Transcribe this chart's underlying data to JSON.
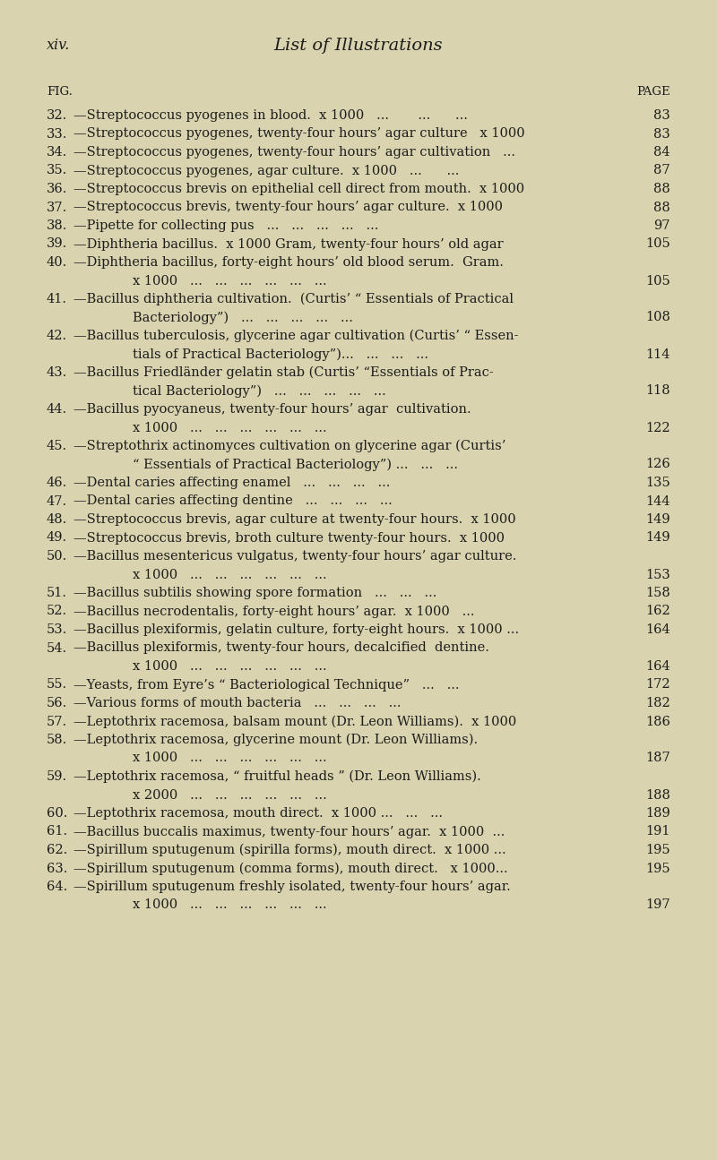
{
  "bg_color": "#d9d4af",
  "header_left": "xiv.",
  "header_center": "List of Illustrations",
  "col_left": "FIG.",
  "col_right": "PAGE",
  "body_font_size": 10.5,
  "figsize": [
    8.0,
    12.95
  ],
  "dpi": 100,
  "entries": [
    {
      "fig": "32.",
      "text": "—Streptococcus pyogenes in blood.  x 1000   ...       ...      ...",
      "page": "83",
      "cont_line": null,
      "cont_page": null
    },
    {
      "fig": "33.",
      "text": "—Streptococcus pyogenes, twenty-four hours’ agar culture   x 1000",
      "page": "83",
      "cont_line": null,
      "cont_page": null
    },
    {
      "fig": "34.",
      "text": "—Streptococcus pyogenes, twenty-four hours’ agar cultivation   ...",
      "page": "84",
      "cont_line": null,
      "cont_page": null
    },
    {
      "fig": "35.",
      "text": "—Streptococcus pyogenes, agar culture.  x 1000   ...      ...",
      "page": "87",
      "cont_line": null,
      "cont_page": null
    },
    {
      "fig": "36.",
      "text": "—Streptococcus brevis on epithelial cell direct from mouth.  x 1000",
      "page": "88",
      "cont_line": null,
      "cont_page": null
    },
    {
      "fig": "37.",
      "text": "—Streptococcus brevis, twenty-four hours’ agar culture.  x 1000",
      "page": "88",
      "cont_line": null,
      "cont_page": null
    },
    {
      "fig": "38.",
      "text": "—Pipette for collecting pus   ...   ...   ...   ...   ...",
      "page": "97",
      "cont_line": null,
      "cont_page": null
    },
    {
      "fig": "39.",
      "text": "—Diphtheria bacillus.  x 1000 Gram, twenty-four hours’ old agar",
      "page": "105",
      "cont_line": null,
      "cont_page": null
    },
    {
      "fig": "40.",
      "text": "—Diphtheria bacillus, forty-eight hours’ old blood serum.  Gram.",
      "page": null,
      "cont_line": "x 1000   ...   ...   ...   ...   ...   ...",
      "cont_page": "105"
    },
    {
      "fig": "41.",
      "text": "—Bacillus diphtheria cultivation.  (Curtis’ “ Essentials of Practical",
      "page": null,
      "cont_line": "Bacteriology”)   ...   ...   ...   ...   ...",
      "cont_page": "108"
    },
    {
      "fig": "42.",
      "text": "—Bacillus tuberculosis, glycerine agar cultivation (Curtis’ “ Essen-",
      "page": null,
      "cont_line": "tials of Practical Bacteriology”)...   ...   ...   ...",
      "cont_page": "114"
    },
    {
      "fig": "43.",
      "text": "—Bacillus Friedländer gelatin stab (Curtis’ “Essentials of Prac-",
      "page": null,
      "cont_line": "tical Bacteriology”)   ...   ...   ...   ...   ...",
      "cont_page": "118"
    },
    {
      "fig": "44.",
      "text": "—Bacillus pyocyaneus, twenty-four hours’ agar  cultivation.",
      "page": null,
      "cont_line": "x 1000   ...   ...   ...   ...   ...   ...",
      "cont_page": "122"
    },
    {
      "fig": "45.",
      "text": "—Streptothrix actinomyces cultivation on glycerine agar (Curtis’",
      "page": null,
      "cont_line": "“ Essentials of Practical Bacteriology”) ...   ...   ...",
      "cont_page": "126"
    },
    {
      "fig": "46.",
      "text": "—Dental caries affecting enamel   ...   ...   ...   ...",
      "page": "135",
      "cont_line": null,
      "cont_page": null
    },
    {
      "fig": "47.",
      "text": "—Dental caries affecting dentine   ...   ...   ...   ...",
      "page": "144",
      "cont_line": null,
      "cont_page": null
    },
    {
      "fig": "48.",
      "text": "—Streptococcus brevis, agar culture at twenty-four hours.  x 1000",
      "page": "149",
      "cont_line": null,
      "cont_page": null
    },
    {
      "fig": "49.",
      "text": "—Streptococcus brevis, broth culture twenty-four hours.  x 1000",
      "page": "149",
      "cont_line": null,
      "cont_page": null
    },
    {
      "fig": "50.",
      "text": "—Bacillus mesentericus vulgatus, twenty-four hours’ agar culture.",
      "page": null,
      "cont_line": "x 1000   ...   ...   ...   ...   ...   ...",
      "cont_page": "153"
    },
    {
      "fig": "51.",
      "text": "—Bacillus subtilis showing spore formation   ...   ...   ...",
      "page": "158",
      "cont_line": null,
      "cont_page": null
    },
    {
      "fig": "52.",
      "text": "—Bacillus necrodentalis, forty-eight hours’ agar.  x 1000   ...",
      "page": "162",
      "cont_line": null,
      "cont_page": null
    },
    {
      "fig": "53.",
      "text": "—Bacillus plexiformis, gelatin culture, forty-eight hours.  x 1000 ...",
      "page": "164",
      "cont_line": null,
      "cont_page": null
    },
    {
      "fig": "54.",
      "text": "—Bacillus plexiformis, twenty-four hours, decalcified  dentine.",
      "page": null,
      "cont_line": "x 1000   ...   ...   ...   ...   ...   ...",
      "cont_page": "164"
    },
    {
      "fig": "55.",
      "text": "—Yeasts, from Eyre’s “ Bacteriological Technique”   ...   ...",
      "page": "172",
      "cont_line": null,
      "cont_page": null
    },
    {
      "fig": "56.",
      "text": "—Various forms of mouth bacteria   ...   ...   ...   ...",
      "page": "182",
      "cont_line": null,
      "cont_page": null
    },
    {
      "fig": "57.",
      "text": "—Leptothrix racemosa, balsam mount (Dr. Leon Williams).  x 1000",
      "page": "186",
      "cont_line": null,
      "cont_page": null
    },
    {
      "fig": "58.",
      "text": "—Leptothrix racemosa, glycerine mount (Dr. Leon Williams).",
      "page": null,
      "cont_line": "x 1000   ...   ...   ...   ...   ...   ...",
      "cont_page": "187"
    },
    {
      "fig": "59.",
      "text": "—Leptothrix racemosa, “ fruitful heads ” (Dr. Leon Williams).",
      "page": null,
      "cont_line": "x 2000   ...   ...   ...   ...   ...   ...",
      "cont_page": "188"
    },
    {
      "fig": "60.",
      "text": "—Leptothrix racemosa, mouth direct.  x 1000 ...   ...   ...",
      "page": "189",
      "cont_line": null,
      "cont_page": null
    },
    {
      "fig": "61.",
      "text": "—Bacillus buccalis maximus, twenty-four hours’ agar.  x 1000  ...",
      "page": "191",
      "cont_line": null,
      "cont_page": null
    },
    {
      "fig": "62.",
      "text": "—Spirillum sputugenum (spirilla forms), mouth direct.  x 1000 ...",
      "page": "195",
      "cont_line": null,
      "cont_page": null
    },
    {
      "fig": "63.",
      "text": "—Spirillum sputugenum (comma forms), mouth direct.   x 1000...",
      "page": "195",
      "cont_line": null,
      "cont_page": null
    },
    {
      "fig": "64.",
      "text": "—Spirillum sputugenum freshly isolated, twenty-four hours’ agar.",
      "page": null,
      "cont_line": "x 1000   ...   ...   ...   ...   ...   ...",
      "cont_page": "197"
    }
  ]
}
